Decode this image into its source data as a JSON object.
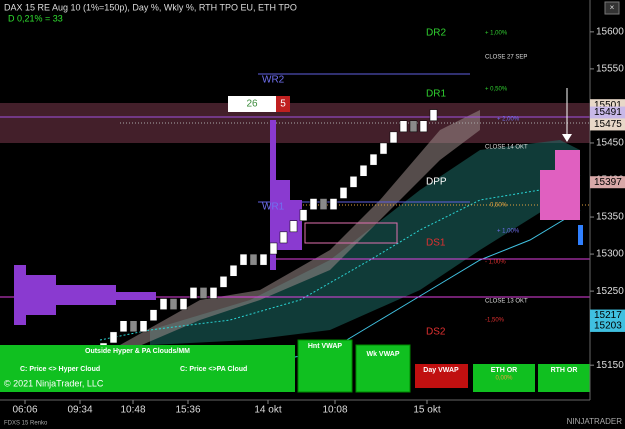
{
  "header": {
    "title": "DAX 15 RE Aug 10 (1%=150p), Day %, Wkly %, RTH TPO EU, ETH TPO",
    "daily": "D 0,21% = 33"
  },
  "price_axis": {
    "ylim": [
      15103,
      15643
    ],
    "yticks": [
      15150,
      15200,
      15250,
      15300,
      15350,
      15400,
      15450,
      15500,
      15550,
      15600
    ]
  },
  "time_axis": {
    "labels": [
      "06:06",
      "09:34",
      "10:48",
      "15:36",
      "14 okt",
      "10:08",
      "15 okt"
    ]
  },
  "price_markers": [
    {
      "value": 15501,
      "color": "#e8d8c8"
    },
    {
      "value": 15491,
      "color": "#c8b8e8"
    },
    {
      "value": 15475,
      "color": "#e8d8c8"
    },
    {
      "value": 15397,
      "color": "#d8a8a8"
    },
    {
      "value": 15217,
      "color": "#40c0e0"
    },
    {
      "value": 15203,
      "color": "#40c0e0"
    }
  ],
  "bricks": [
    {
      "open": 15165,
      "close": 15180
    },
    {
      "open": 15180,
      "close": 15195
    },
    {
      "open": 15195,
      "close": 15210
    },
    {
      "open": 15210,
      "close": 15195
    },
    {
      "open": 15195,
      "close": 15210
    },
    {
      "open": 15210,
      "close": 15225
    },
    {
      "open": 15225,
      "close": 15240
    },
    {
      "open": 15240,
      "close": 15225
    },
    {
      "open": 15225,
      "close": 15240
    },
    {
      "open": 15240,
      "close": 15255
    },
    {
      "open": 15255,
      "close": 15240
    },
    {
      "open": 15240,
      "close": 15255
    },
    {
      "open": 15255,
      "close": 15270
    },
    {
      "open": 15270,
      "close": 15285
    },
    {
      "open": 15285,
      "close": 15300
    },
    {
      "open": 15300,
      "close": 15285
    },
    {
      "open": 15285,
      "close": 15300
    },
    {
      "open": 15300,
      "close": 15315
    },
    {
      "open": 15315,
      "close": 15330
    },
    {
      "open": 15330,
      "close": 15345
    },
    {
      "open": 15345,
      "close": 15360
    },
    {
      "open": 15360,
      "close": 15375
    },
    {
      "open": 15375,
      "close": 15360
    },
    {
      "open": 15360,
      "close": 15375
    },
    {
      "open": 15375,
      "close": 15390
    },
    {
      "open": 15390,
      "close": 15405
    },
    {
      "open": 15405,
      "close": 15420
    },
    {
      "open": 15420,
      "close": 15435
    },
    {
      "open": 15435,
      "close": 15450
    },
    {
      "open": 15450,
      "close": 15465
    },
    {
      "open": 15465,
      "close": 15480
    },
    {
      "open": 15480,
      "close": 15465
    },
    {
      "open": 15465,
      "close": 15480
    },
    {
      "open": 15480,
      "close": 15495
    }
  ],
  "levels": {
    "dr2": "DR2",
    "dr1": "DR1",
    "wr2": "WR2",
    "wr1": "WR1",
    "dpp": "DPP",
    "ds1": "DS1",
    "ds2": "DS2"
  },
  "notes": {
    "p100": "+ 1,00%",
    "close27": "CLOSE 27 SEP",
    "p050": "+ 0,50%",
    "p200": "+ 2,00%",
    "close14": "CLOSE 14 OKT",
    "p050b": "0,50%",
    "p100b": "+ 1,00%",
    "m100": "- 1,00%",
    "close13": "CLOSE 13 OKT",
    "m150": "-1,50%"
  },
  "counter": {
    "left": "26",
    "right": "5"
  },
  "buttons": {
    "outside": "Outside Hyper & PA Clouds/MM",
    "hyper": "C: Price <> Hyper Cloud",
    "pa": "C: Price <>PA Cloud",
    "hnt": "Hnt VWAP",
    "wk": "Wk VWAP",
    "day": "Day VWAP",
    "eth": "ETH OR",
    "eth_pct": "0,00%",
    "rth": "RTH OR"
  },
  "footer": {
    "copyright": "© 2021 NinjaTrader, LLC",
    "instrument": "FDXS 15 Renko",
    "brand": "NINJATRADER"
  }
}
